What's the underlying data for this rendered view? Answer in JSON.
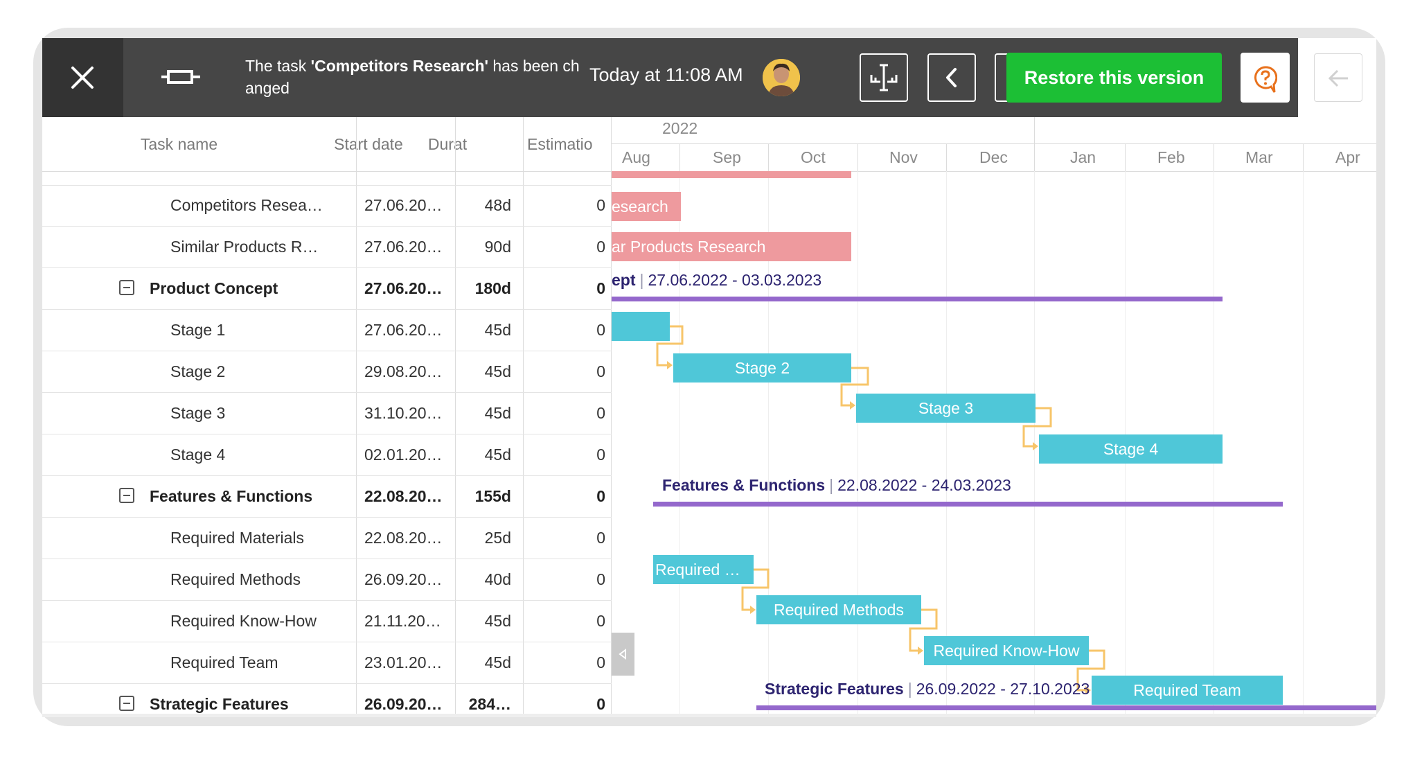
{
  "header": {
    "message_prefix": "The task ",
    "message_task": "'Competitors Research'",
    "message_suffix": " has been changed",
    "timestamp": "Today at 11:08 AM",
    "restore_label": "Restore this version"
  },
  "grid": {
    "columns": [
      "Task name",
      "Start date",
      "Durat",
      "Estimatio"
    ],
    "rows": [
      {
        "name": "Competitors Resea…",
        "start": "27.06.20…",
        "dur": "48d",
        "est": "0",
        "group": false
      },
      {
        "name": "Similar Products R…",
        "start": "27.06.20…",
        "dur": "90d",
        "est": "0",
        "group": false
      },
      {
        "name": "Product Concept",
        "start": "27.06.20…",
        "dur": "180d",
        "est": "0",
        "group": true
      },
      {
        "name": "Stage 1",
        "start": "27.06.20…",
        "dur": "45d",
        "est": "0",
        "group": false
      },
      {
        "name": "Stage 2",
        "start": "29.08.20…",
        "dur": "45d",
        "est": "0",
        "group": false
      },
      {
        "name": "Stage 3",
        "start": "31.10.20…",
        "dur": "45d",
        "est": "0",
        "group": false
      },
      {
        "name": "Stage 4",
        "start": "02.01.20…",
        "dur": "45d",
        "est": "0",
        "group": false
      },
      {
        "name": "Features & Functions",
        "start": "22.08.20…",
        "dur": "155d",
        "est": "0",
        "group": true
      },
      {
        "name": "Required Materials",
        "start": "22.08.20…",
        "dur": "25d",
        "est": "0",
        "group": false
      },
      {
        "name": "Required Methods",
        "start": "26.09.20…",
        "dur": "40d",
        "est": "0",
        "group": false
      },
      {
        "name": "Required Know-How",
        "start": "21.11.20…",
        "dur": "45d",
        "est": "0",
        "group": false
      },
      {
        "name": "Required Team",
        "start": "23.01.20…",
        "dur": "45d",
        "est": "0",
        "group": false
      },
      {
        "name": "Strategic Features",
        "start": "26.09.20…",
        "dur": "284…",
        "est": "0",
        "group": true
      }
    ]
  },
  "timeline": {
    "year": "2022",
    "months": [
      "Aug",
      "Sep",
      "Oct",
      "Nov",
      "Dec",
      "Jan",
      "Feb",
      "Mar",
      "Apr"
    ],
    "bars": {
      "competitors": "esearch",
      "similar": "ar Products Research",
      "stage2": "Stage 2",
      "stage3": "Stage 3",
      "stage4": "Stage 4",
      "req_materials": "Required …",
      "req_methods": "Required Methods",
      "req_knowhow": "Required Know-How",
      "req_team": "Required Team"
    },
    "summaries": {
      "product_concept": {
        "name": "ept",
        "range": "27.06.2022 - 03.03.2023"
      },
      "features": {
        "name": "Features & Functions",
        "range": "22.08.2022 - 24.03.2023"
      },
      "strategic": {
        "name": "Strategic Features",
        "range": "26.09.2022 - 27.10.2023"
      }
    }
  },
  "icons": [
    "close-icon",
    "compare-icon",
    "avatar",
    "split-view-icon",
    "chevron-left-icon",
    "chevron-right-icon",
    "help-icon",
    "arrow-left-icon",
    "collapse-icon"
  ],
  "colors": {
    "restore": "#1cbf35",
    "task_cyan": "#4fc7d8",
    "task_pink": "#ee9a9e",
    "summary": "#9468cc",
    "link": "#f7c56a"
  }
}
